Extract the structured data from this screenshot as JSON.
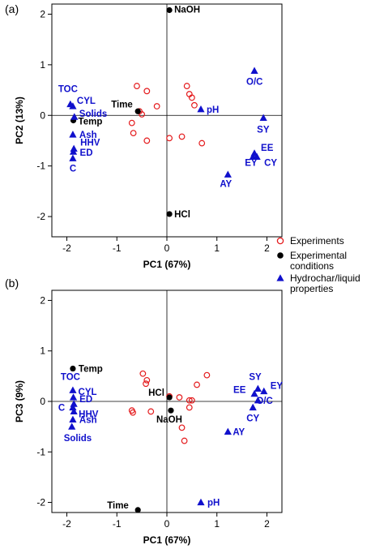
{
  "colors": {
    "experiments": "#e41a1c",
    "conditions": "#000000",
    "properties": "#1010cc"
  },
  "legend": {
    "items": [
      {
        "label": "Experiments",
        "marker": "open-circle",
        "color": "#e41a1c"
      },
      {
        "label": "Experimental",
        "label2": "conditions",
        "marker": "filled-circle",
        "color": "#000000"
      },
      {
        "label": "Hydrochar/liquid",
        "label2": "properties",
        "marker": "filled-triangle",
        "color": "#1010cc"
      }
    ]
  },
  "chart_data": [
    {
      "type": "scatter",
      "panel_label": "(a)",
      "xlabel": "PC1 (67%)",
      "ylabel": "PC2 (13%)",
      "xlim": [
        -2.3,
        2.3
      ],
      "ylim": [
        -2.4,
        2.2
      ],
      "xticks": [
        -2,
        -1,
        0,
        1,
        2
      ],
      "yticks": [
        -2,
        -1,
        0,
        1,
        2
      ],
      "reference_lines": {
        "x": 0,
        "y": 0
      },
      "experiments": [
        [
          -0.6,
          0.58
        ],
        [
          -0.4,
          0.48
        ],
        [
          -0.2,
          0.18
        ],
        [
          -0.55,
          0.08
        ],
        [
          -0.5,
          0.02
        ],
        [
          -0.7,
          -0.15
        ],
        [
          -0.67,
          -0.35
        ],
        [
          -0.4,
          -0.5
        ],
        [
          0.05,
          -0.45
        ],
        [
          0.3,
          -0.42
        ],
        [
          0.7,
          -0.55
        ],
        [
          0.4,
          0.58
        ],
        [
          0.45,
          0.42
        ],
        [
          0.5,
          0.35
        ],
        [
          0.55,
          0.2
        ]
      ],
      "conditions": [
        {
          "label": "NaOH",
          "x": 0.05,
          "y": 2.08
        },
        {
          "label": "Time",
          "x": -0.58,
          "y": 0.08
        },
        {
          "label": "Temp",
          "x": -1.87,
          "y": -0.1
        },
        {
          "label": "HCl",
          "x": 0.05,
          "y": -1.95
        }
      ],
      "properties": [
        {
          "label": "O/C",
          "x": 1.75,
          "y": 0.88
        },
        {
          "label": "pH",
          "x": 0.68,
          "y": 0.12
        },
        {
          "label": "SY",
          "x": 1.93,
          "y": -0.05
        },
        {
          "label": "EE",
          "x": 1.75,
          "y": -0.75
        },
        {
          "label": "EY",
          "x": 1.72,
          "y": -0.82
        },
        {
          "label": "CY",
          "x": 1.8,
          "y": -0.82
        },
        {
          "label": "AY",
          "x": 1.22,
          "y": -1.17
        },
        {
          "label": "TOC",
          "x": -1.93,
          "y": 0.22
        },
        {
          "label": "CYL",
          "x": -1.88,
          "y": 0.18
        },
        {
          "label": "Solids",
          "x": -1.85,
          "y": -0.03
        },
        {
          "label": "Ash",
          "x": -1.88,
          "y": -0.38
        },
        {
          "label": "HHV",
          "x": -1.86,
          "y": -0.66
        },
        {
          "label": "ED",
          "x": -1.87,
          "y": -0.72
        },
        {
          "label": "C",
          "x": -1.88,
          "y": -0.85
        }
      ]
    },
    {
      "type": "scatter",
      "panel_label": "(b)",
      "xlabel": "PC1 (67%)",
      "ylabel": "PC3 (9%)",
      "xlim": [
        -2.3,
        2.3
      ],
      "ylim": [
        -2.2,
        2.2
      ],
      "xticks": [
        -2,
        -1,
        0,
        1,
        2
      ],
      "yticks": [
        -2,
        -1,
        0,
        1,
        2
      ],
      "reference_lines": {
        "x": 0,
        "y": 0
      },
      "experiments": [
        [
          -0.48,
          0.55
        ],
        [
          -0.4,
          0.42
        ],
        [
          -0.42,
          0.35
        ],
        [
          -0.7,
          -0.18
        ],
        [
          -0.68,
          -0.22
        ],
        [
          -0.32,
          -0.2
        ],
        [
          0.25,
          0.08
        ],
        [
          0.45,
          -0.12
        ],
        [
          0.45,
          0.02
        ],
        [
          0.5,
          0.02
        ],
        [
          0.6,
          0.33
        ],
        [
          0.8,
          0.52
        ],
        [
          0.3,
          -0.52
        ],
        [
          0.35,
          -0.78
        ],
        [
          0.05,
          0.1
        ]
      ],
      "conditions": [
        {
          "label": "Temp",
          "x": -1.88,
          "y": 0.65
        },
        {
          "label": "HCl",
          "x": 0.05,
          "y": 0.08
        },
        {
          "label": "NaOH",
          "x": 0.08,
          "y": -0.18
        },
        {
          "label": "Time",
          "x": -0.58,
          "y": -2.15
        }
      ],
      "properties": [
        {
          "label": "SY",
          "x": 1.82,
          "y": 0.25
        },
        {
          "label": "EY",
          "x": 1.94,
          "y": 0.2
        },
        {
          "label": "EE",
          "x": 1.75,
          "y": 0.15
        },
        {
          "label": "O/C",
          "x": 1.82,
          "y": 0.02
        },
        {
          "label": "CY",
          "x": 1.72,
          "y": -0.12
        },
        {
          "label": "AY",
          "x": 1.22,
          "y": -0.6
        },
        {
          "label": "pH",
          "x": 0.68,
          "y": -2.0
        },
        {
          "label": "TOC",
          "x": -1.88,
          "y": 0.22
        },
        {
          "label": "CYL",
          "x": -1.87,
          "y": 0.08
        },
        {
          "label": "ED",
          "x": -1.86,
          "y": -0.05
        },
        {
          "label": "C",
          "x": -1.88,
          "y": -0.12
        },
        {
          "label": "HHV",
          "x": -1.86,
          "y": -0.2
        },
        {
          "label": "Ash",
          "x": -1.88,
          "y": -0.36
        },
        {
          "label": "Solids",
          "x": -1.9,
          "y": -0.5
        }
      ]
    }
  ]
}
